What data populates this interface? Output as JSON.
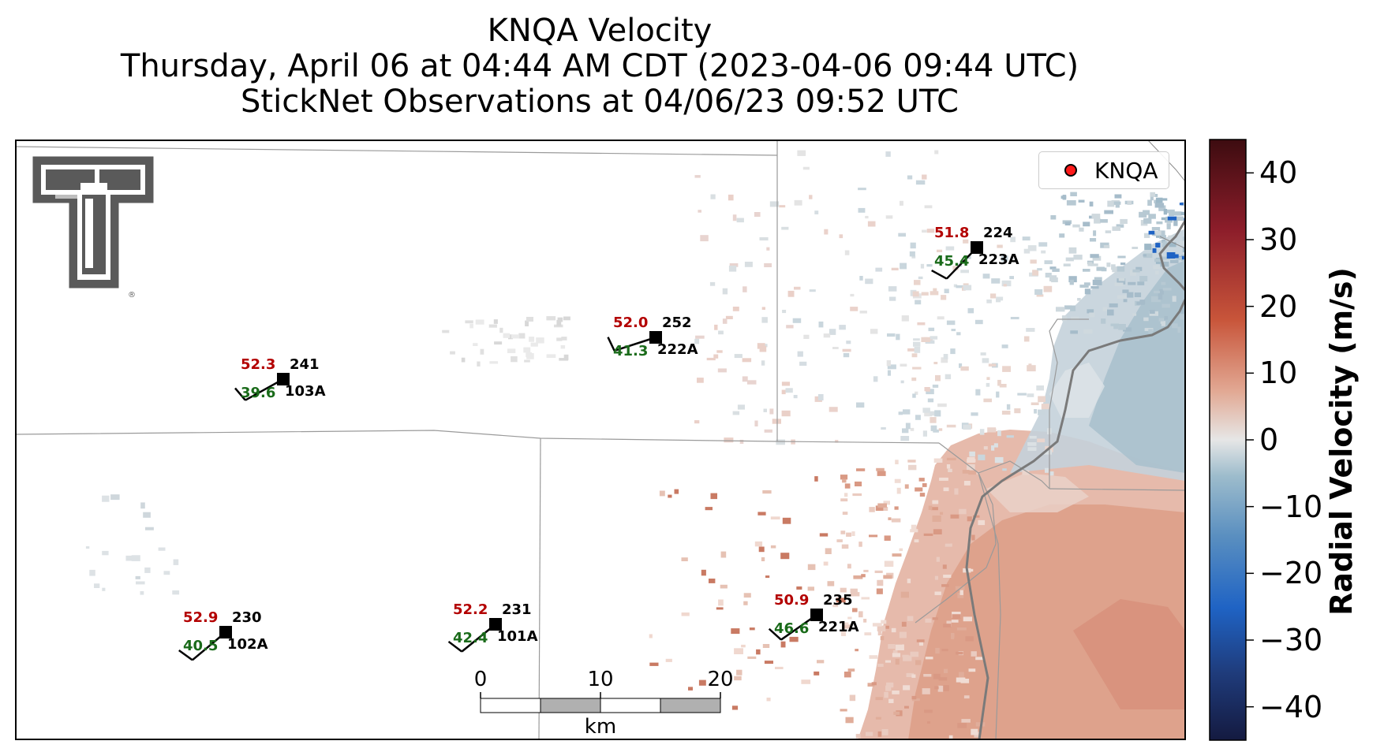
{
  "title": {
    "line1": "KNQA Velocity",
    "line2": "Thursday, April 06 at 04:44 AM CDT (2023-04-06 09:44 UTC)",
    "line3": "StickNet Observations at 04/06/23 09:52 UTC"
  },
  "legend": {
    "label": "KNQA",
    "marker_color": "#ff1a1a"
  },
  "colorbar": {
    "label": "Radial Velocity (m/s)",
    "ticks": [
      "40",
      "30",
      "20",
      "10",
      "0",
      "−10",
      "−20",
      "−30",
      "−40"
    ],
    "range": [
      -45,
      45
    ],
    "colors": [
      "#141a40",
      "#1f3b7a",
      "#1f63c4",
      "#5a8fc0",
      "#9dbccc",
      "#e6e6e6",
      "#e2a994",
      "#c8553a",
      "#8c1d2a",
      "#3d0c10"
    ]
  },
  "scalebar": {
    "ticks": [
      "0",
      "10",
      "20"
    ],
    "unit": "km"
  },
  "logo": {
    "name": "texas-tech-double-t-logo",
    "color": "#5a5a5a"
  },
  "stations": [
    {
      "id": "103A",
      "temp": "52.3",
      "dew": "39.6",
      "dir": "241"
    },
    {
      "id": "222A",
      "temp": "52.0",
      "dew": "41.3",
      "dir": "252"
    },
    {
      "id": "223A",
      "temp": "51.8",
      "dew": "45.4",
      "dir": "224"
    },
    {
      "id": "102A",
      "temp": "52.9",
      "dew": "40.5",
      "dir": "230"
    },
    {
      "id": "101A",
      "temp": "52.2",
      "dew": "42.4",
      "dir": "231"
    },
    {
      "id": "221A",
      "temp": "50.9",
      "dew": "46.6",
      "dir": "235"
    }
  ],
  "colors": {
    "temp": "#b30000",
    "dew": "#1a6b1a",
    "text": "#000000",
    "county_line": "#9a9a9a",
    "state_line": "#7a7a7a"
  }
}
